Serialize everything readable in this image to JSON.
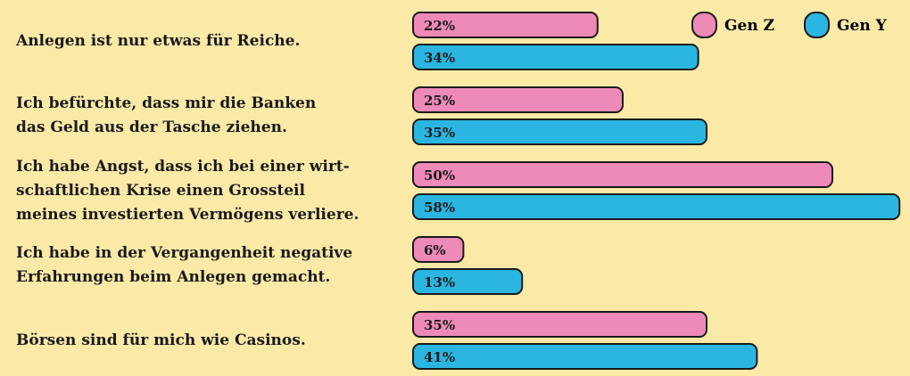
{
  "chart_data": {
    "type": "bar",
    "orientation": "horizontal",
    "categories": [
      "Anlegen ist nur etwas für Reiche.",
      "Ich befürchte, dass mir die Banken\ndas Geld aus der Tasche ziehen.",
      "Ich habe Angst, dass ich bei einer wirt-\nschaftlichen Krise einen Grossteil\nmeines investierten Vermögens verliere.",
      "Ich habe in der Vergangenheit negative\nErfahrungen beim Anlegen gemacht.",
      "Börsen sind für mich wie Casinos."
    ],
    "series": [
      {
        "name": "Gen Z",
        "color": "#ee8ab8",
        "values": [
          22,
          25,
          50,
          6,
          35
        ],
        "labels": [
          "22%",
          "25%",
          "50%",
          "6%",
          "35%"
        ]
      },
      {
        "name": "Gen Y",
        "color": "#2bb6e2",
        "values": [
          34,
          35,
          58,
          13,
          41
        ],
        "labels": [
          "34%",
          "35%",
          "58%",
          "13%",
          "41%"
        ]
      }
    ],
    "legend_position": "top-right",
    "grid": false
  }
}
